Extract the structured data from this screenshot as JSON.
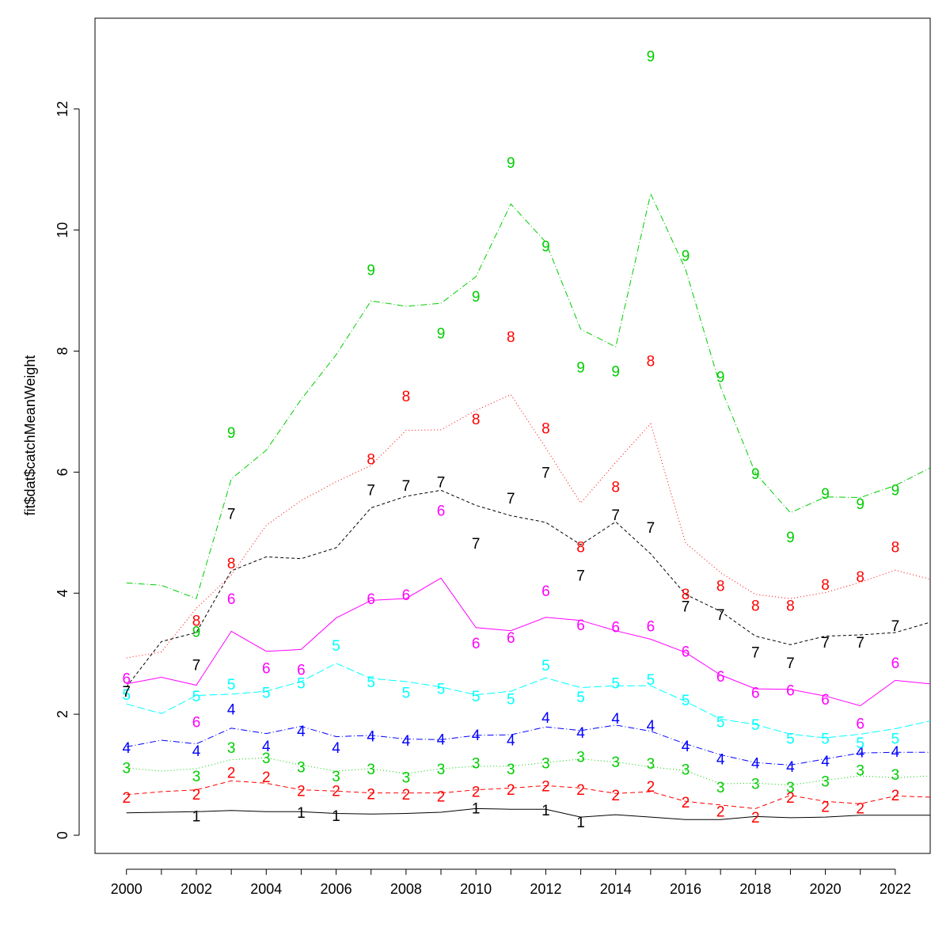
{
  "chart_data": {
    "type": "line",
    "title": "",
    "xlabel": "",
    "ylabel": "fit$dat$catchMeanWeight",
    "xlim": [
      1999.1,
      2023
    ],
    "ylim": [
      -0.3,
      13.5
    ],
    "x_ticks": [
      2000,
      2002,
      2004,
      2006,
      2008,
      2010,
      2012,
      2014,
      2016,
      2018,
      2020,
      2022
    ],
    "y_ticks": [
      0,
      2,
      4,
      6,
      8,
      10,
      12
    ],
    "grid": false,
    "legend": "none",
    "years": [
      2000,
      2001,
      2002,
      2003,
      2004,
      2005,
      2006,
      2007,
      2008,
      2009,
      2010,
      2011,
      2012,
      2013,
      2014,
      2015,
      2016,
      2017,
      2018,
      2019,
      2020,
      2021,
      2022,
      2023
    ],
    "series": [
      {
        "label": "1",
        "color": "#000000",
        "dash": "",
        "fitted": [
          0.37,
          0.38,
          0.39,
          0.41,
          0.39,
          0.39,
          0.36,
          0.35,
          0.36,
          0.38,
          0.44,
          0.43,
          0.43,
          0.3,
          0.34,
          0.3,
          0.26,
          0.26,
          0.31,
          0.29,
          0.3,
          0.33,
          0.33,
          0.33
        ],
        "observed": [
          null,
          null,
          0.32,
          null,
          null,
          0.38,
          0.33,
          null,
          null,
          null,
          0.45,
          null,
          0.42,
          0.22,
          null,
          null,
          null,
          null,
          null,
          null,
          null,
          null,
          null,
          null
        ]
      },
      {
        "label": "2",
        "color": "#ff0000",
        "dash": "6,4",
        "fitted": [
          0.67,
          0.72,
          0.75,
          0.9,
          0.86,
          0.75,
          0.73,
          0.7,
          0.7,
          0.7,
          0.75,
          0.78,
          0.82,
          0.78,
          0.69,
          0.72,
          0.56,
          0.5,
          0.44,
          0.66,
          0.56,
          0.52,
          0.65,
          0.63
        ],
        "observed": [
          0.63,
          null,
          0.68,
          1.04,
          0.97,
          0.74,
          0.74,
          0.69,
          0.68,
          0.65,
          0.73,
          0.76,
          0.82,
          0.76,
          0.67,
          0.81,
          0.55,
          0.4,
          0.3,
          0.63,
          0.48,
          0.45,
          0.67,
          null
        ]
      },
      {
        "label": "3",
        "color": "#00cd00",
        "dash": "1,3",
        "fitted": [
          1.11,
          1.06,
          1.1,
          1.25,
          1.28,
          1.16,
          1.06,
          1.1,
          1.02,
          1.1,
          1.14,
          1.14,
          1.2,
          1.26,
          1.21,
          1.13,
          1.07,
          0.85,
          0.86,
          0.83,
          0.91,
          0.98,
          0.95,
          0.98
        ],
        "observed": [
          1.12,
          null,
          0.98,
          1.45,
          1.28,
          1.13,
          0.98,
          1.1,
          0.96,
          1.1,
          1.2,
          1.1,
          1.2,
          1.3,
          1.22,
          1.19,
          1.09,
          0.8,
          0.86,
          0.8,
          0.9,
          1.08,
          1.01,
          null
        ]
      },
      {
        "label": "4",
        "color": "#0000ff",
        "dash": "8,3,1,3",
        "fitted": [
          1.46,
          1.57,
          1.51,
          1.77,
          1.68,
          1.8,
          1.63,
          1.65,
          1.59,
          1.58,
          1.65,
          1.66,
          1.79,
          1.73,
          1.82,
          1.72,
          1.51,
          1.33,
          1.2,
          1.16,
          1.26,
          1.36,
          1.37,
          1.37
        ],
        "observed": [
          1.45,
          null,
          1.4,
          2.09,
          1.48,
          1.73,
          1.45,
          1.64,
          1.57,
          1.59,
          1.66,
          1.58,
          1.95,
          1.7,
          1.94,
          1.82,
          1.48,
          1.26,
          1.2,
          1.14,
          1.23,
          1.38,
          1.39,
          null
        ]
      },
      {
        "label": "5",
        "color": "#00ffff",
        "dash": "10,4",
        "fitted": [
          2.17,
          2.01,
          2.31,
          2.33,
          2.38,
          2.54,
          2.84,
          2.59,
          2.54,
          2.45,
          2.32,
          2.38,
          2.6,
          2.44,
          2.47,
          2.47,
          2.21,
          1.92,
          1.83,
          1.67,
          1.61,
          1.67,
          1.76,
          1.89
        ],
        "observed": [
          2.33,
          null,
          2.3,
          2.5,
          2.36,
          2.52,
          3.14,
          2.54,
          2.36,
          2.43,
          2.3,
          2.26,
          2.81,
          2.29,
          2.52,
          2.58,
          2.24,
          1.88,
          1.83,
          1.6,
          1.6,
          1.53,
          1.6,
          null
        ]
      },
      {
        "label": "6",
        "color": "#ff00ff",
        "dash": "",
        "fitted": [
          2.5,
          2.61,
          2.48,
          3.37,
          3.04,
          3.07,
          3.59,
          3.88,
          3.91,
          4.25,
          3.43,
          3.38,
          3.6,
          3.55,
          3.38,
          3.24,
          3.02,
          2.65,
          2.42,
          2.41,
          2.3,
          2.14,
          2.56,
          2.5
        ],
        "observed": [
          2.6,
          null,
          1.88,
          3.91,
          2.77,
          2.74,
          null,
          3.91,
          3.98,
          5.37,
          3.18,
          3.27,
          4.04,
          3.48,
          3.45,
          3.46,
          3.04,
          2.63,
          2.36,
          2.4,
          2.25,
          1.85,
          2.85,
          null
        ]
      },
      {
        "label": "7",
        "color": "#000000",
        "dash": "4,3",
        "fitted": [
          2.45,
          3.2,
          3.35,
          4.37,
          4.6,
          4.57,
          4.75,
          5.41,
          5.6,
          5.7,
          5.45,
          5.28,
          5.17,
          4.8,
          5.18,
          4.65,
          3.98,
          3.7,
          3.29,
          3.15,
          3.29,
          3.31,
          3.35,
          3.52
        ],
        "observed": [
          2.38,
          null,
          2.82,
          5.32,
          null,
          null,
          null,
          5.71,
          5.78,
          5.84,
          4.83,
          5.57,
          6.0,
          4.3,
          5.3,
          5.09,
          3.79,
          3.65,
          3.03,
          2.85,
          3.19,
          3.19,
          3.47,
          null
        ]
      },
      {
        "label": "8",
        "color": "#ff0000",
        "dash": "1,3",
        "fitted": [
          2.93,
          3.03,
          3.75,
          4.3,
          5.12,
          5.53,
          5.84,
          6.11,
          6.69,
          6.7,
          7.02,
          7.28,
          6.4,
          5.49,
          6.16,
          6.8,
          4.83,
          4.34,
          3.98,
          3.91,
          4.01,
          4.18,
          4.38,
          4.23
        ],
        "observed": [
          null,
          null,
          3.55,
          4.5,
          null,
          null,
          null,
          6.22,
          7.26,
          null,
          6.88,
          8.24,
          6.73,
          4.77,
          5.76,
          7.84,
          3.99,
          4.13,
          3.8,
          3.8,
          4.15,
          4.28,
          4.77,
          null
        ]
      },
      {
        "label": "9",
        "color": "#00cd00",
        "dash": "8,3,1,3",
        "fitted": [
          4.17,
          4.13,
          3.91,
          5.89,
          6.36,
          7.2,
          7.94,
          8.83,
          8.74,
          8.79,
          9.23,
          10.43,
          9.8,
          8.36,
          8.07,
          10.6,
          9.35,
          7.41,
          5.98,
          5.33,
          5.59,
          5.58,
          5.78,
          6.07
        ],
        "observed": [
          null,
          null,
          3.37,
          6.66,
          null,
          null,
          null,
          9.35,
          null,
          8.3,
          8.91,
          11.12,
          9.74,
          7.74,
          7.67,
          12.88,
          9.58,
          7.58,
          5.98,
          4.93,
          5.65,
          5.48,
          5.71,
          null
        ]
      }
    ]
  }
}
